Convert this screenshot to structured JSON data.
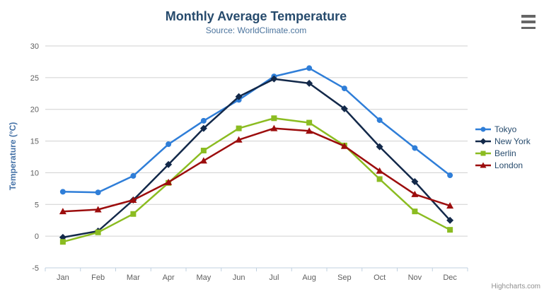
{
  "chart_data": {
    "type": "line",
    "title": "Monthly Average Temperature",
    "subtitle": "Source: WorldClimate.com",
    "categories": [
      "Jan",
      "Feb",
      "Mar",
      "Apr",
      "May",
      "Jun",
      "Jul",
      "Aug",
      "Sep",
      "Oct",
      "Nov",
      "Dec"
    ],
    "xlabel": "",
    "ylabel": "Temperature (°C)",
    "ylim": [
      -5,
      30
    ],
    "y_ticks": [
      -5,
      0,
      5,
      10,
      15,
      20,
      25,
      30
    ],
    "grid": true,
    "legend_position": "right",
    "series": [
      {
        "name": "Tokyo",
        "color": "#2f7ed8",
        "marker": "circle",
        "values": [
          7.0,
          6.9,
          9.5,
          14.5,
          18.2,
          21.5,
          25.2,
          26.5,
          23.3,
          18.3,
          13.9,
          9.6
        ]
      },
      {
        "name": "New York",
        "color": "#13294a",
        "marker": "diamond",
        "values": [
          -0.2,
          0.8,
          5.7,
          11.3,
          17.0,
          22.0,
          24.8,
          24.1,
          20.1,
          14.1,
          8.6,
          2.5
        ]
      },
      {
        "name": "Berlin",
        "color": "#8bbc21",
        "marker": "square",
        "values": [
          -0.9,
          0.6,
          3.5,
          8.4,
          13.5,
          17.0,
          18.6,
          17.9,
          14.3,
          9.0,
          3.9,
          1.0
        ]
      },
      {
        "name": "London",
        "color": "#9c0d0d",
        "marker": "triangle",
        "values": [
          3.9,
          4.2,
          5.7,
          8.5,
          11.9,
          15.2,
          17.0,
          16.6,
          14.2,
          10.3,
          6.6,
          4.8
        ]
      }
    ]
  },
  "credits": {
    "label": "Highcharts.com"
  },
  "colors": {
    "title": "#274b6d",
    "subtitle": "#4d759e",
    "axis_title": "#4572a7",
    "axis_labels": "#606060",
    "grid_line": "#d0d0d0",
    "axis_line": "#c0d0e0",
    "legend_text": "#274b6d",
    "credits_text": "#909090",
    "menu_icon": "#666666"
  }
}
